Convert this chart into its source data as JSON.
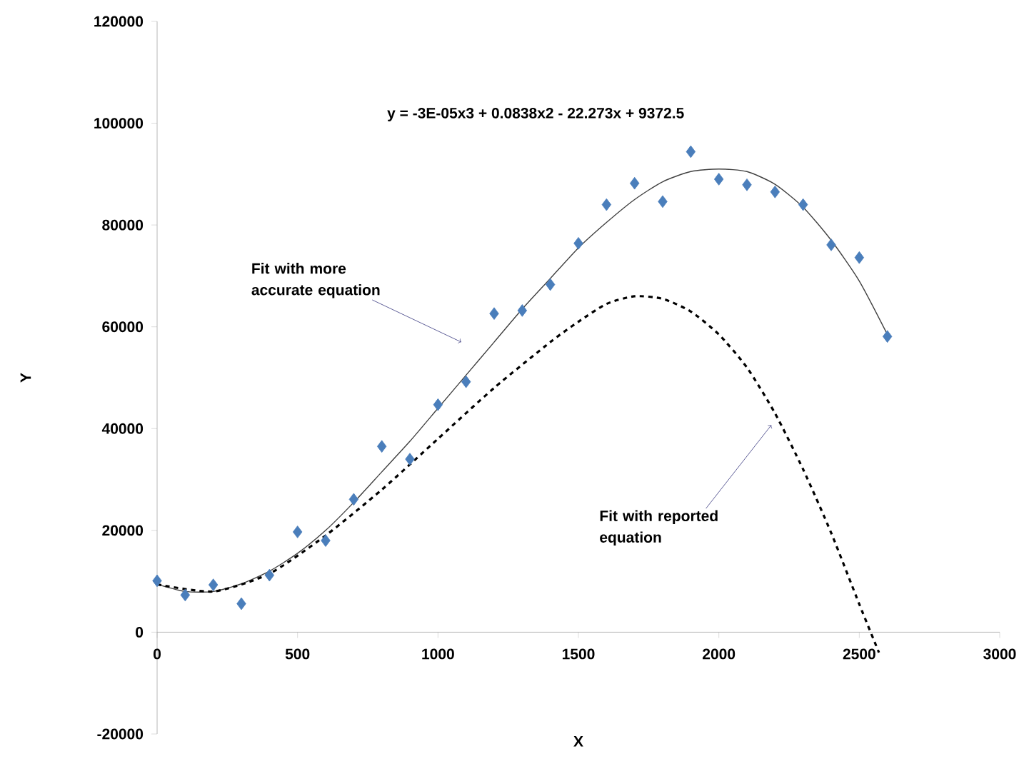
{
  "chart_data": {
    "type": "scatter",
    "xlabel": "X",
    "ylabel": "Y",
    "xlim": [
      0,
      3000
    ],
    "xticks": [
      0,
      500,
      1000,
      1500,
      2000,
      2500,
      3000
    ],
    "ylim": [
      -20000,
      120000
    ],
    "yticks": [
      -20000,
      0,
      20000,
      40000,
      60000,
      80000,
      100000,
      120000
    ],
    "grid": false,
    "marker": "diamond",
    "series": [
      {
        "color": "#4a7ebb",
        "x": [
          0,
          100,
          200,
          300,
          400,
          500,
          600,
          700,
          800,
          900,
          1000,
          1100,
          1200,
          1300,
          1400,
          1500,
          1600,
          1700,
          1800,
          1900,
          2000,
          2100,
          2200,
          2300,
          2400,
          2500,
          2600
        ],
        "values": [
          10100,
          7300,
          9300,
          5600,
          11200,
          19700,
          18000,
          26100,
          36500,
          34000,
          44700,
          49200,
          62600,
          63200,
          68300,
          76400,
          84000,
          88200,
          84600,
          94400,
          89000,
          87900,
          86500,
          84000,
          76100,
          73600,
          58100
        ]
      },
      {
        "type": "line",
        "color": "#404040",
        "marker": "none",
        "line_style": "solid",
        "x": [
          0,
          100,
          200,
          300,
          400,
          500,
          600,
          700,
          800,
          900,
          1000,
          1100,
          1200,
          1300,
          1400,
          1500,
          1600,
          1700,
          1800,
          1900,
          2000,
          2100,
          2200,
          2300,
          2400,
          2500,
          2600
        ],
        "values": [
          9400,
          8000,
          8000,
          9500,
          12000,
          15500,
          20000,
          25500,
          31500,
          37500,
          44000,
          50500,
          57000,
          63500,
          69500,
          75500,
          80500,
          85000,
          88500,
          90500,
          91000,
          90500,
          88000,
          83500,
          77000,
          69000,
          58500
        ]
      },
      {
        "type": "line",
        "color": "#000000",
        "marker": "none",
        "line_style": "dashed",
        "x": [
          0,
          200,
          400,
          600,
          800,
          1000,
          1200,
          1400,
          1500,
          1600,
          1700,
          1800,
          1900,
          2000,
          2100,
          2200,
          2300,
          2400,
          2500,
          2570
        ],
        "values": [
          9400,
          8000,
          11500,
          19000,
          28000,
          38000,
          48000,
          57000,
          61000,
          64500,
          66000,
          65500,
          63000,
          58500,
          52000,
          43000,
          32000,
          19500,
          5500,
          -4000
        ]
      }
    ],
    "annotations": [
      "y = -3E-05x3 + 0.0838x2 - 22.273x + 9372.5",
      {
        "text": "Fit with more accurate equation",
        "x": 1083,
        "y": 57000
      },
      {
        "text": "Fit with reported equation",
        "x": 2187,
        "y": 40700
      }
    ]
  }
}
